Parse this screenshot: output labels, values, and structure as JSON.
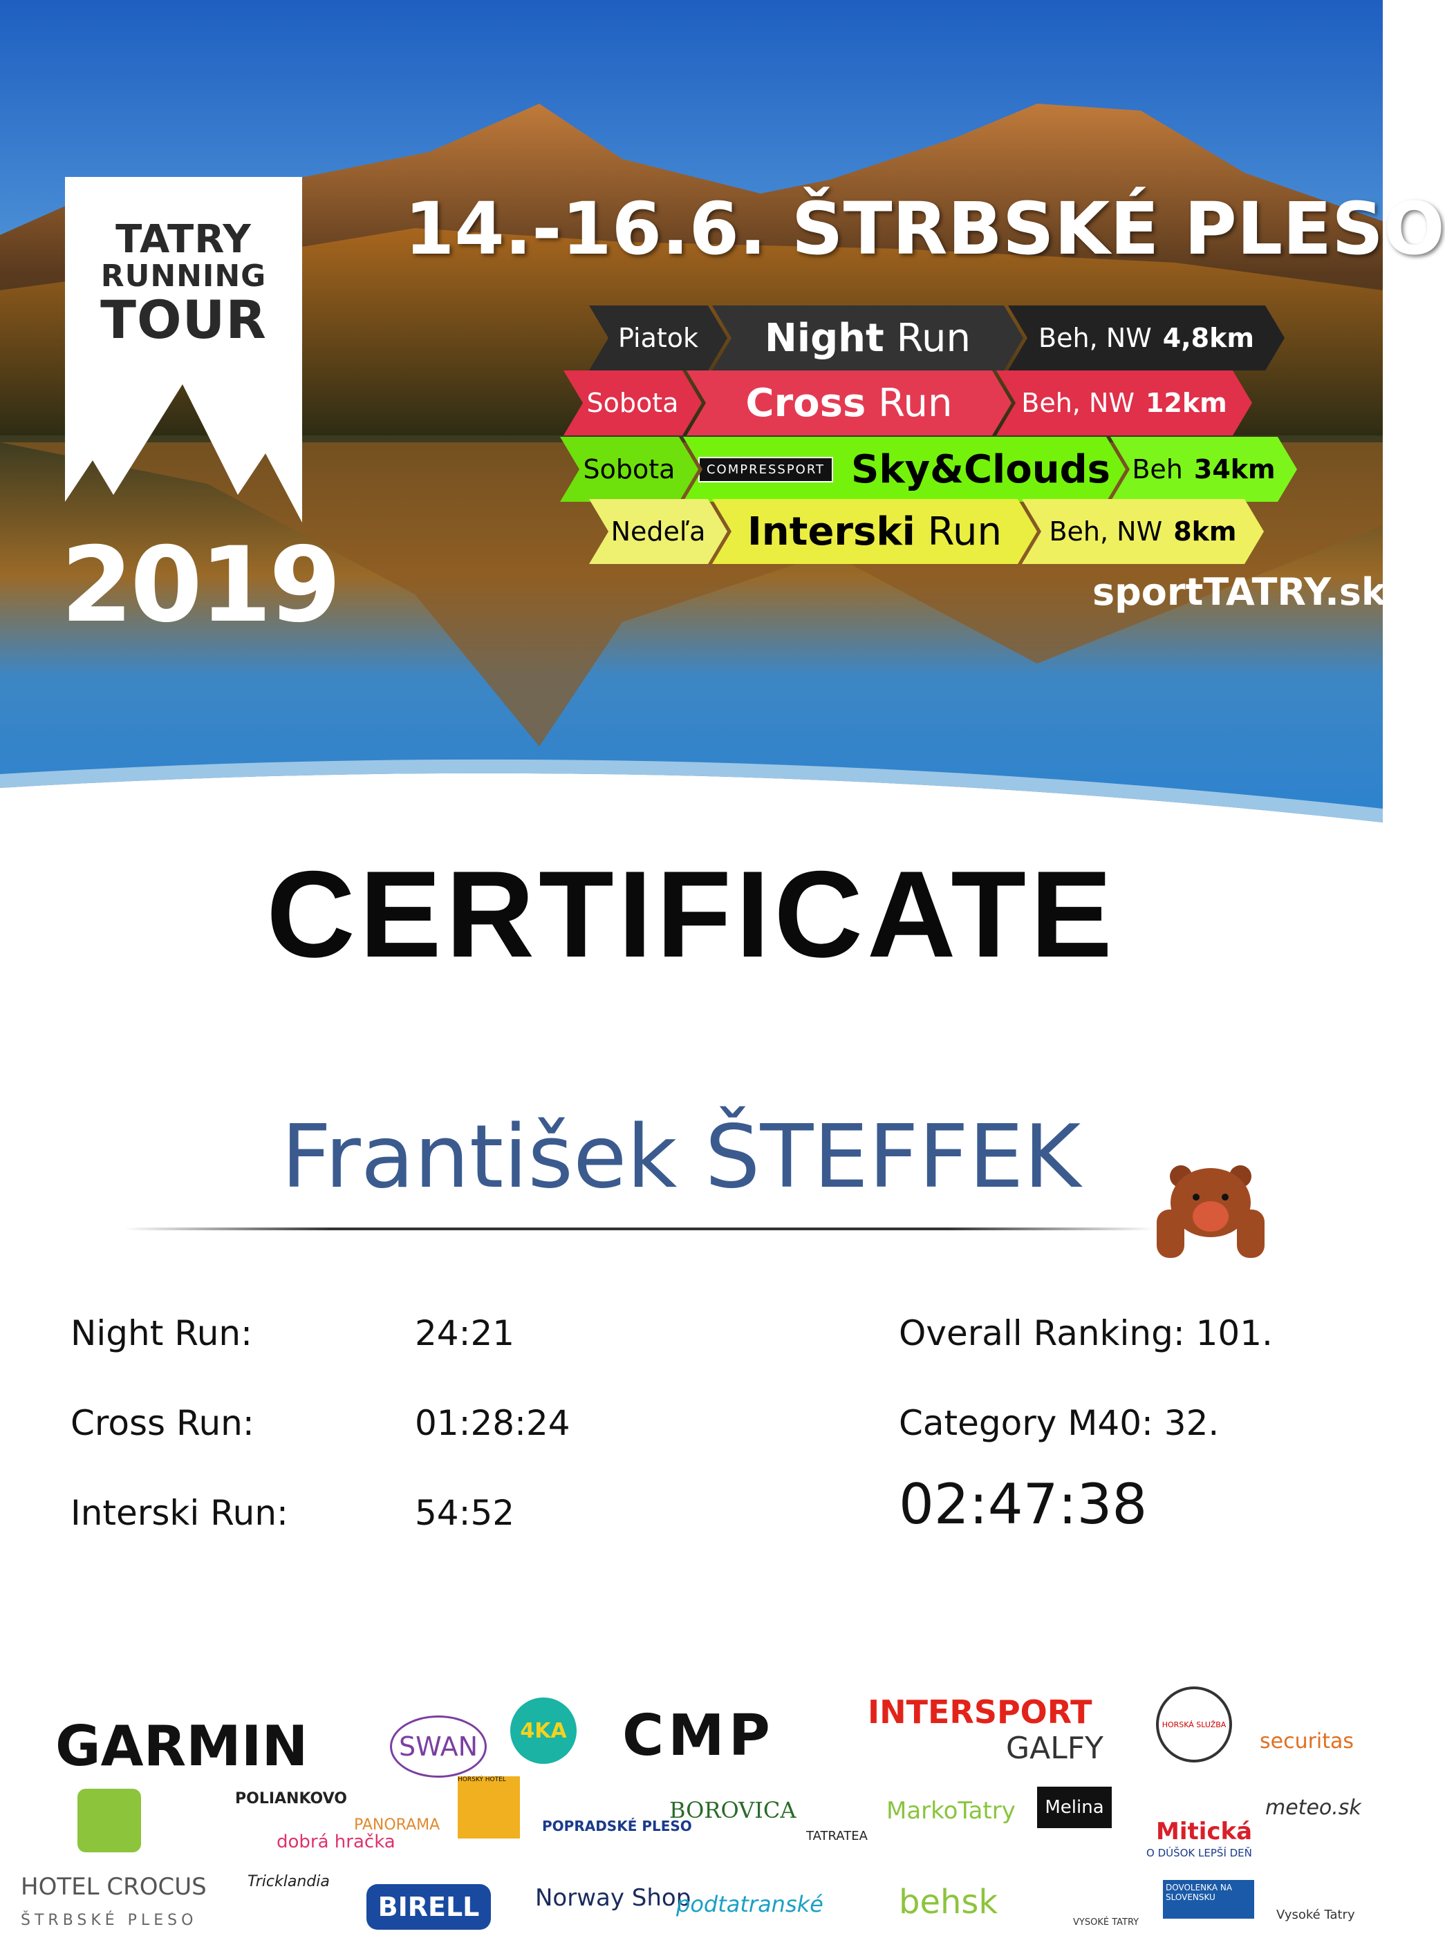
{
  "hero": {
    "logo": {
      "line1": "TATRY",
      "line2": "RUNNING",
      "line3": "TOUR"
    },
    "year": "2019",
    "date_location": "14.-16.6.  ŠTRBSKÉ PLESO",
    "races": [
      {
        "day": "Piatok",
        "name_bold": "Night",
        "name_rest": "Run",
        "type": "Beh, NW",
        "distance": "4,8km",
        "color": "#2b2b2b",
        "text_color": "#ffffff"
      },
      {
        "day": "Sobota",
        "name_bold": "Cross",
        "name_rest": "Run",
        "type": "Beh, NW",
        "distance": "12km",
        "color": "#e0304a",
        "text_color": "#ffffff"
      },
      {
        "day": "Sobota",
        "sponsor": "COMPRESSPORT",
        "name_bold": "Sky&Clouds",
        "name_rest": "",
        "type": "Beh",
        "distance": "34km",
        "color": "#74f20c",
        "text_color": "#000000"
      },
      {
        "day": "Nedeľa",
        "name_bold": "Interski",
        "name_rest": "Run",
        "type": "Beh, NW",
        "distance": "8km",
        "color": "#e8ee3a",
        "text_color": "#000000"
      }
    ],
    "website": "sportTATRY.sk"
  },
  "certificate": {
    "title": "CERTIFICATE",
    "name": "František ŠTEFFEK",
    "results": [
      {
        "label": "Night Run:",
        "time": "24:21"
      },
      {
        "label": "Cross Run:",
        "time": "01:28:24"
      },
      {
        "label": "Interski Run:",
        "time": "54:52"
      }
    ],
    "overall_ranking": "Overall Ranking: 101.",
    "category_ranking": "Category M40: 32.",
    "total_time": "02:47:38",
    "name_color": "#3b5b8f"
  },
  "sponsors": {
    "row1": [
      "GARMIN",
      "SWAN",
      "4KA",
      "CMP",
      "INTERSPORT",
      "GALFY",
      "HORSKÁ SLUŽBA",
      "securitas"
    ],
    "row2": [
      "POLIANKOVO",
      "dobrá hračka",
      "PANORAMA",
      "HORSKÝ HOTEL",
      "POPRADSKÉ PLESO",
      "BOROVICA",
      "TATRATEA",
      "MarkoTatry",
      "Melina",
      "Mitická",
      "O DÚŠOK LEPŠÍ DEŇ",
      "meteo.sk"
    ],
    "row3": [
      "HOTEL CROCUS",
      "ŠTRBSKÉ PLESO",
      "Tricklandia",
      "BIRELL",
      "Norway Shop",
      "podtatranské",
      "behsk",
      "VYSOKÉ TATRY",
      "DOVOLENKA NA SLOVENSKU",
      "Vysoké Tatry"
    ]
  }
}
